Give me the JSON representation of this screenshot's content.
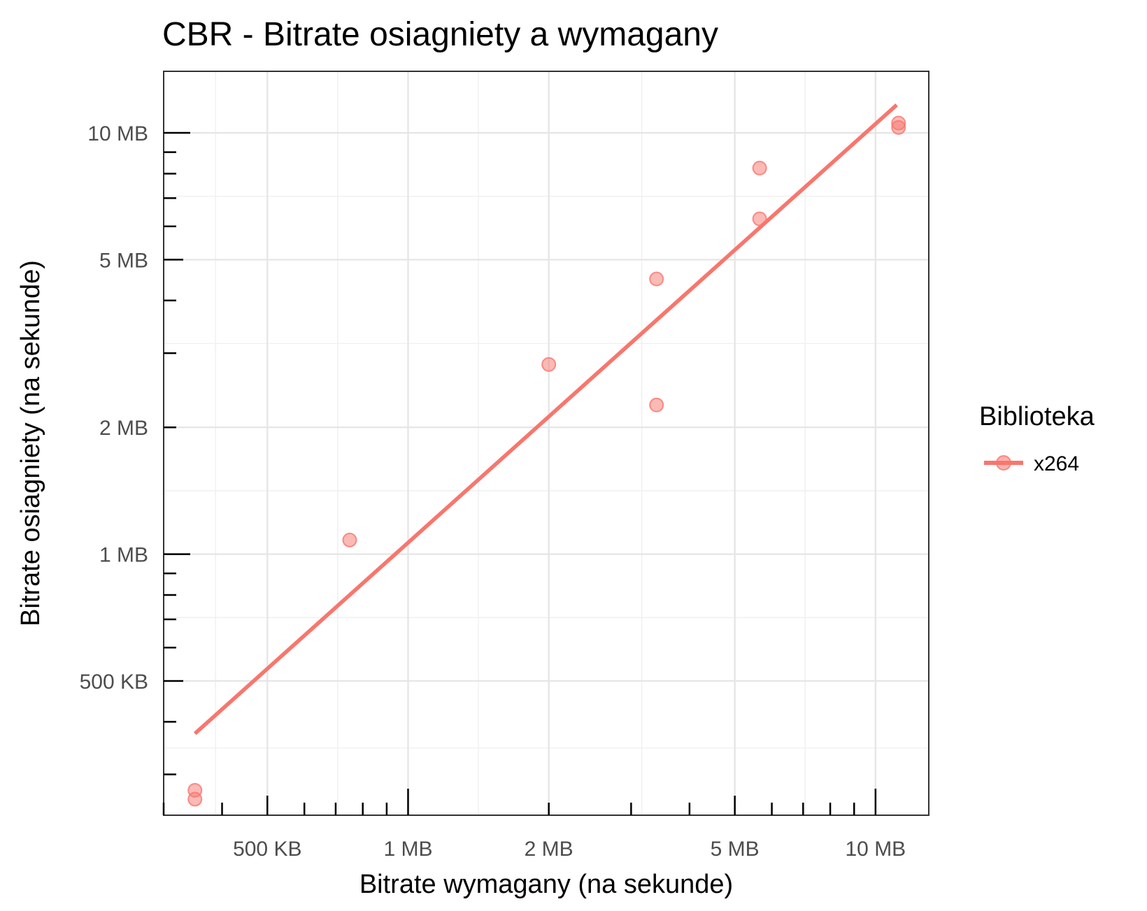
{
  "chart_data": {
    "type": "scatter",
    "title": "CBR - Bitrate osiagniety a wymagany",
    "xlabel": "Bitrate wymagany (na sekunde)",
    "ylabel": "Bitrate osiagniety (na sekunde)",
    "x_scale": "log10",
    "y_scale": "log10",
    "xlim": [
      300000,
      13000000
    ],
    "ylim": [
      240000,
      14000000
    ],
    "x_ticks": [
      {
        "value": 500000,
        "label": "500 KB"
      },
      {
        "value": 1000000,
        "label": "1 MB"
      },
      {
        "value": 2000000,
        "label": "2 MB"
      },
      {
        "value": 5000000,
        "label": "5 MB"
      },
      {
        "value": 10000000,
        "label": "10 MB"
      }
    ],
    "y_ticks": [
      {
        "value": 500000,
        "label": "500 KB"
      },
      {
        "value": 1000000,
        "label": "1 MB"
      },
      {
        "value": 2000000,
        "label": "2 MB"
      },
      {
        "value": 5000000,
        "label": "5 MB"
      },
      {
        "value": 10000000,
        "label": "10 MB"
      }
    ],
    "grid": true,
    "legend": {
      "title": "Biblioteka",
      "position": "right"
    },
    "series": [
      {
        "name": "x264",
        "color": "#F8766D",
        "points": [
          {
            "x": 350000,
            "y": 275000
          },
          {
            "x": 350000,
            "y": 262000
          },
          {
            "x": 750000,
            "y": 1080000
          },
          {
            "x": 2000000,
            "y": 2820000
          },
          {
            "x": 3400000,
            "y": 4500000
          },
          {
            "x": 3400000,
            "y": 2260000
          },
          {
            "x": 5650000,
            "y": 8250000
          },
          {
            "x": 5650000,
            "y": 6250000
          },
          {
            "x": 11200000,
            "y": 10550000
          },
          {
            "x": 11200000,
            "y": 10300000
          }
        ],
        "trend_line": {
          "x": [
            350000,
            11100000
          ],
          "y": [
            375000,
            11650000
          ]
        }
      }
    ]
  }
}
